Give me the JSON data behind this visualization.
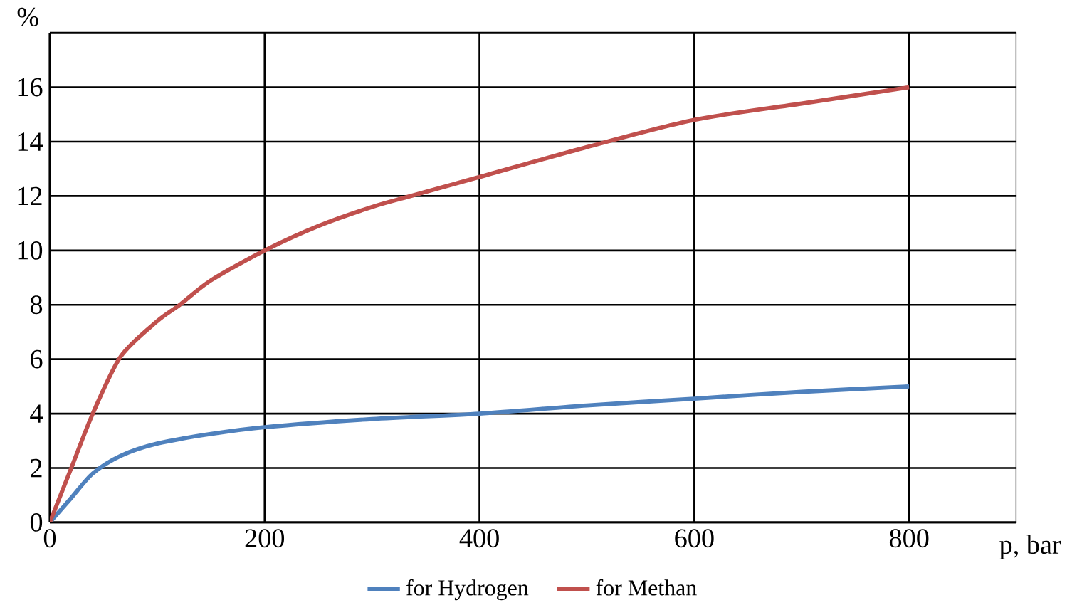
{
  "chart_data": {
    "type": "line",
    "xlabel": "p, bar",
    "ylabel": "%",
    "xlim": [
      0,
      900
    ],
    "ylim": [
      0,
      18
    ],
    "xticks": [
      0,
      200,
      400,
      600,
      800
    ],
    "yticks": [
      0,
      2,
      4,
      6,
      8,
      10,
      12,
      14,
      16,
      {
        "value": 18,
        "label": null
      }
    ],
    "grid": true,
    "legend": "bottom",
    "marker": "none",
    "line_style": "solid",
    "series": [
      {
        "name": "for Hydrogen",
        "color": "#4f81bd",
        "x": [
          0,
          20,
          40,
          66,
          100,
          150,
          200,
          300,
          400,
          500,
          600,
          700,
          800
        ],
        "values": [
          0,
          0.9,
          1.8,
          2.45,
          2.9,
          3.25,
          3.5,
          3.8,
          4.0,
          4.3,
          4.55,
          4.8,
          5.0
        ]
      },
      {
        "name": "for Methan",
        "color": "#c0504d",
        "x": [
          0,
          20,
          40,
          66,
          100,
          121,
          150,
          200,
          250,
          300,
          336,
          400,
          500,
          600,
          700,
          800
        ],
        "values": [
          0,
          2.0,
          4.0,
          6.1,
          7.4,
          8.0,
          8.9,
          10.0,
          10.9,
          11.6,
          12.0,
          12.7,
          13.8,
          14.8,
          15.4,
          16.0
        ]
      }
    ]
  }
}
